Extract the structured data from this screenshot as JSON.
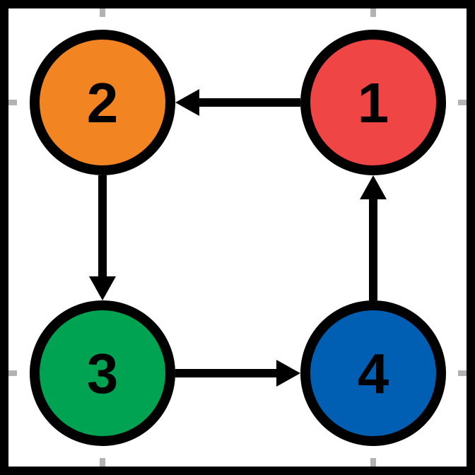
{
  "diagram": {
    "nodes": [
      {
        "id": "1",
        "label": "1",
        "color": "#F04545"
      },
      {
        "id": "2",
        "label": "2",
        "color": "#F28422"
      },
      {
        "id": "3",
        "label": "3",
        "color": "#00A352"
      },
      {
        "id": "4",
        "label": "4",
        "color": "#005EB3"
      }
    ],
    "edges": [
      {
        "from": "1",
        "to": "2"
      },
      {
        "from": "2",
        "to": "3"
      },
      {
        "from": "3",
        "to": "4"
      },
      {
        "from": "4",
        "to": "1"
      }
    ],
    "stroke_color": "#000000",
    "tick_color": "#B3B3B3"
  }
}
